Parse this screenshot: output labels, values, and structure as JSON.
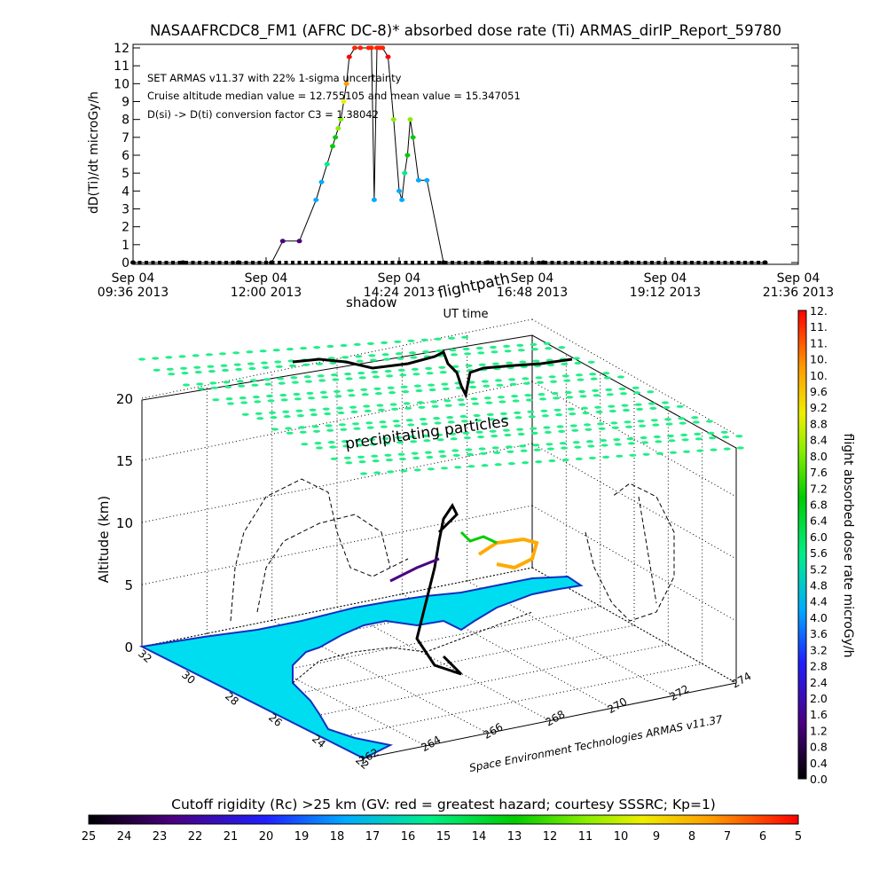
{
  "header": {
    "title": "NASAAFRCDC8_FM1 (AFRC DC-8)* absorbed dose rate (Ti) ARMAS_dirIP_Report_59780"
  },
  "chart_data": [
    {
      "type": "scatter",
      "id": "dose-time-series",
      "ylabel": "dD(Ti)/dt microGy/h",
      "xlabel": "UT time",
      "ylim": [
        0,
        12
      ],
      "yticks": [
        "0",
        "1",
        "2",
        "3",
        "4",
        "5",
        "6",
        "7",
        "8",
        "9",
        "10",
        "11",
        "12"
      ],
      "xticks": [
        {
          "line1": "Sep 04",
          "line2": "09:36 2013"
        },
        {
          "line1": "Sep 04",
          "line2": "12:00 2013"
        },
        {
          "line1": "Sep 04",
          "line2": "14:24 2013"
        },
        {
          "line1": "Sep 04",
          "line2": "16:48 2013"
        },
        {
          "line1": "Sep 04",
          "line2": "19:12 2013"
        },
        {
          "line1": "Sep 04",
          "line2": "21:36 2013"
        }
      ],
      "annotations": [
        "SET ARMAS v11.37 with 22% 1-sigma uncertainty",
        "Cruise altitude median value = 12.755105 and mean value = 15.347051",
        "D(si) -> D(ti) conversion factor C3 = 1.38042"
      ],
      "x_hours": [
        9.6,
        10.5,
        11.5,
        12.1,
        12.3,
        12.6,
        12.9,
        13.0,
        13.1,
        13.2,
        13.25,
        13.3,
        13.35,
        13.4,
        13.45,
        13.5,
        13.6,
        13.7,
        13.85,
        13.9,
        13.95,
        14.0,
        14.05,
        14.1,
        14.2,
        14.3,
        14.4,
        14.45,
        14.5,
        14.55,
        14.6,
        14.65,
        14.75,
        14.9,
        15.2,
        16.0,
        17.0,
        18.5,
        21.0
      ],
      "y_values": [
        0,
        0,
        0,
        0,
        1.2,
        1.2,
        3.5,
        4.5,
        5.5,
        6.5,
        7,
        7.5,
        8,
        9,
        10,
        11.5,
        12,
        12,
        12,
        12,
        3.5,
        12,
        12,
        12,
        11.5,
        8,
        4,
        3.5,
        5,
        6,
        8,
        7,
        4.6,
        4.6,
        0,
        0,
        0,
        0,
        0
      ]
    },
    {
      "type": "scatter",
      "id": "flight-3d",
      "zlabel": "Altitude (km)",
      "zticks": [
        "0",
        "5",
        "10",
        "15",
        "20"
      ],
      "yticks": [
        "22",
        "24",
        "26",
        "28",
        "30",
        "32"
      ],
      "xticks": [
        "262",
        "264",
        "266",
        "268",
        "270",
        "272",
        "274"
      ],
      "labels": {
        "shadow": "shadow",
        "flightpath": "flightpath",
        "particles": "precipitating particles",
        "credit": "Space Environment Technologies ARMAS v11.37"
      }
    }
  ],
  "colorbar_right": {
    "label": "flight absorbed dose rate microGy/h",
    "ticks": [
      "12.",
      "11.",
      "11.",
      "10.",
      "10.",
      "9.6",
      "9.2",
      "8.8",
      "8.4",
      "8.0",
      "7.6",
      "7.2",
      "6.8",
      "6.4",
      "6.0",
      "5.6",
      "5.2",
      "4.8",
      "4.4",
      "4.0",
      "3.6",
      "3.2",
      "2.8",
      "2.4",
      "2.0",
      "1.6",
      "1.2",
      "0.8",
      "0.4",
      "0.0"
    ]
  },
  "colorbar_bottom": {
    "title": "Cutoff rigidity (Rc) >25 km (GV: red = greatest hazard; courtesy SSSRC; Kp=1)",
    "ticks": [
      "25",
      "24",
      "23",
      "22",
      "21",
      "20",
      "19",
      "18",
      "17",
      "16",
      "15",
      "14",
      "13",
      "12",
      "11",
      "10",
      "9",
      "8",
      "7",
      "6",
      "5"
    ]
  },
  "colors": {
    "ocean": "#00ddf0",
    "particle": "#22ee88",
    "rainbow": [
      "#000000",
      "#4b0082",
      "#2020ff",
      "#00aaff",
      "#00ee88",
      "#00cc00",
      "#88ee00",
      "#eeee00",
      "#ff9900",
      "#ff0000"
    ]
  }
}
